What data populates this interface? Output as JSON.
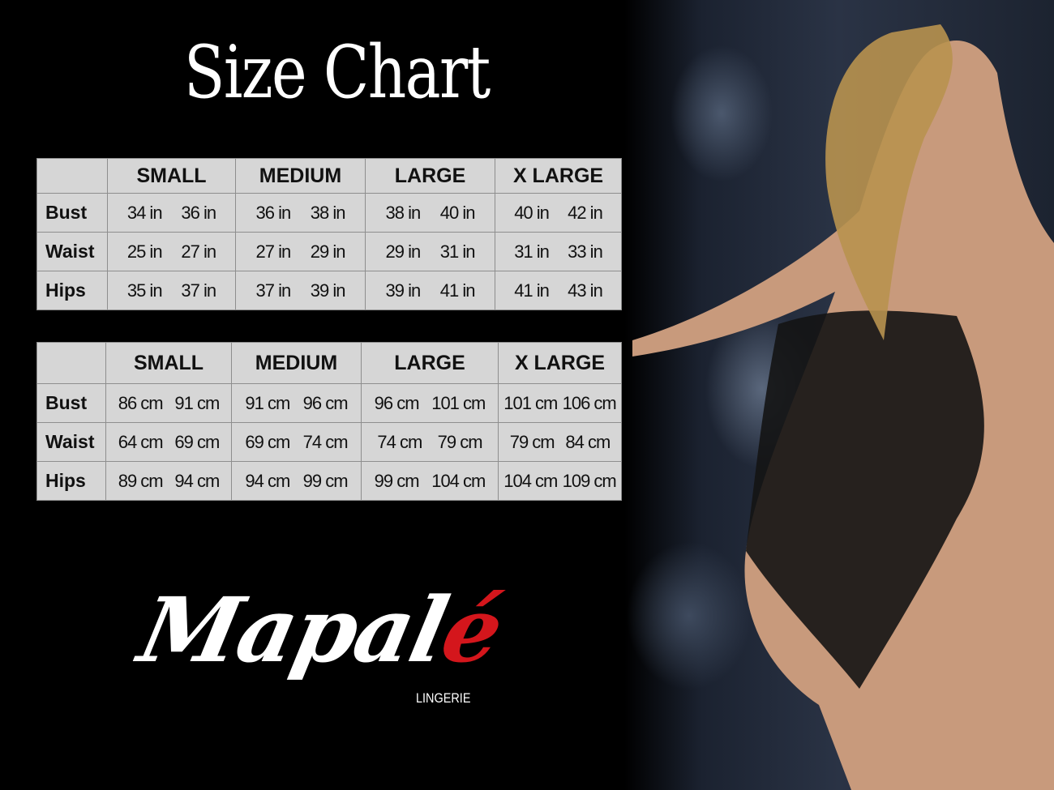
{
  "title": "Size Chart",
  "sizes": [
    "SMALL",
    "MEDIUM",
    "LARGE",
    "X LARGE"
  ],
  "inches": {
    "rows": [
      {
        "label": "Bust",
        "values": [
          [
            "34 in",
            "36 in"
          ],
          [
            "36 in",
            "38 in"
          ],
          [
            "38 in",
            "40 in"
          ],
          [
            "40 in",
            "42 in"
          ]
        ]
      },
      {
        "label": "Waist",
        "values": [
          [
            "25 in",
            "27 in"
          ],
          [
            "27 in",
            "29 in"
          ],
          [
            "29 in",
            "31 in"
          ],
          [
            "31 in",
            "33 in"
          ]
        ]
      },
      {
        "label": "Hips",
        "values": [
          [
            "35 in",
            "37 in"
          ],
          [
            "37 in",
            "39 in"
          ],
          [
            "39 in",
            "41 in"
          ],
          [
            "41 in",
            "43 in"
          ]
        ]
      }
    ]
  },
  "centimeters": {
    "rows": [
      {
        "label": "Bust",
        "values": [
          [
            "86 cm",
            "91 cm"
          ],
          [
            "91 cm",
            "96 cm"
          ],
          [
            "96 cm",
            "101 cm"
          ],
          [
            "101 cm",
            "106 cm"
          ]
        ]
      },
      {
        "label": "Waist",
        "values": [
          [
            "64 cm",
            "69 cm"
          ],
          [
            "69 cm",
            "74 cm"
          ],
          [
            "74 cm",
            "79 cm"
          ],
          [
            "79 cm",
            "84 cm"
          ]
        ]
      },
      {
        "label": "Hips",
        "values": [
          [
            "89 cm",
            "94 cm"
          ],
          [
            "94 cm",
            "99 cm"
          ],
          [
            "99 cm",
            "104 cm"
          ],
          [
            "104 cm",
            "109 cm"
          ]
        ]
      }
    ]
  },
  "brand": {
    "name_main": "Mapal",
    "name_accent": "é",
    "tagline": "LINGERIE",
    "accent_color": "#d4161c"
  },
  "colors": {
    "background": "#000000",
    "table_bg": "#d6d6d6",
    "table_border": "#8e8e8e"
  }
}
